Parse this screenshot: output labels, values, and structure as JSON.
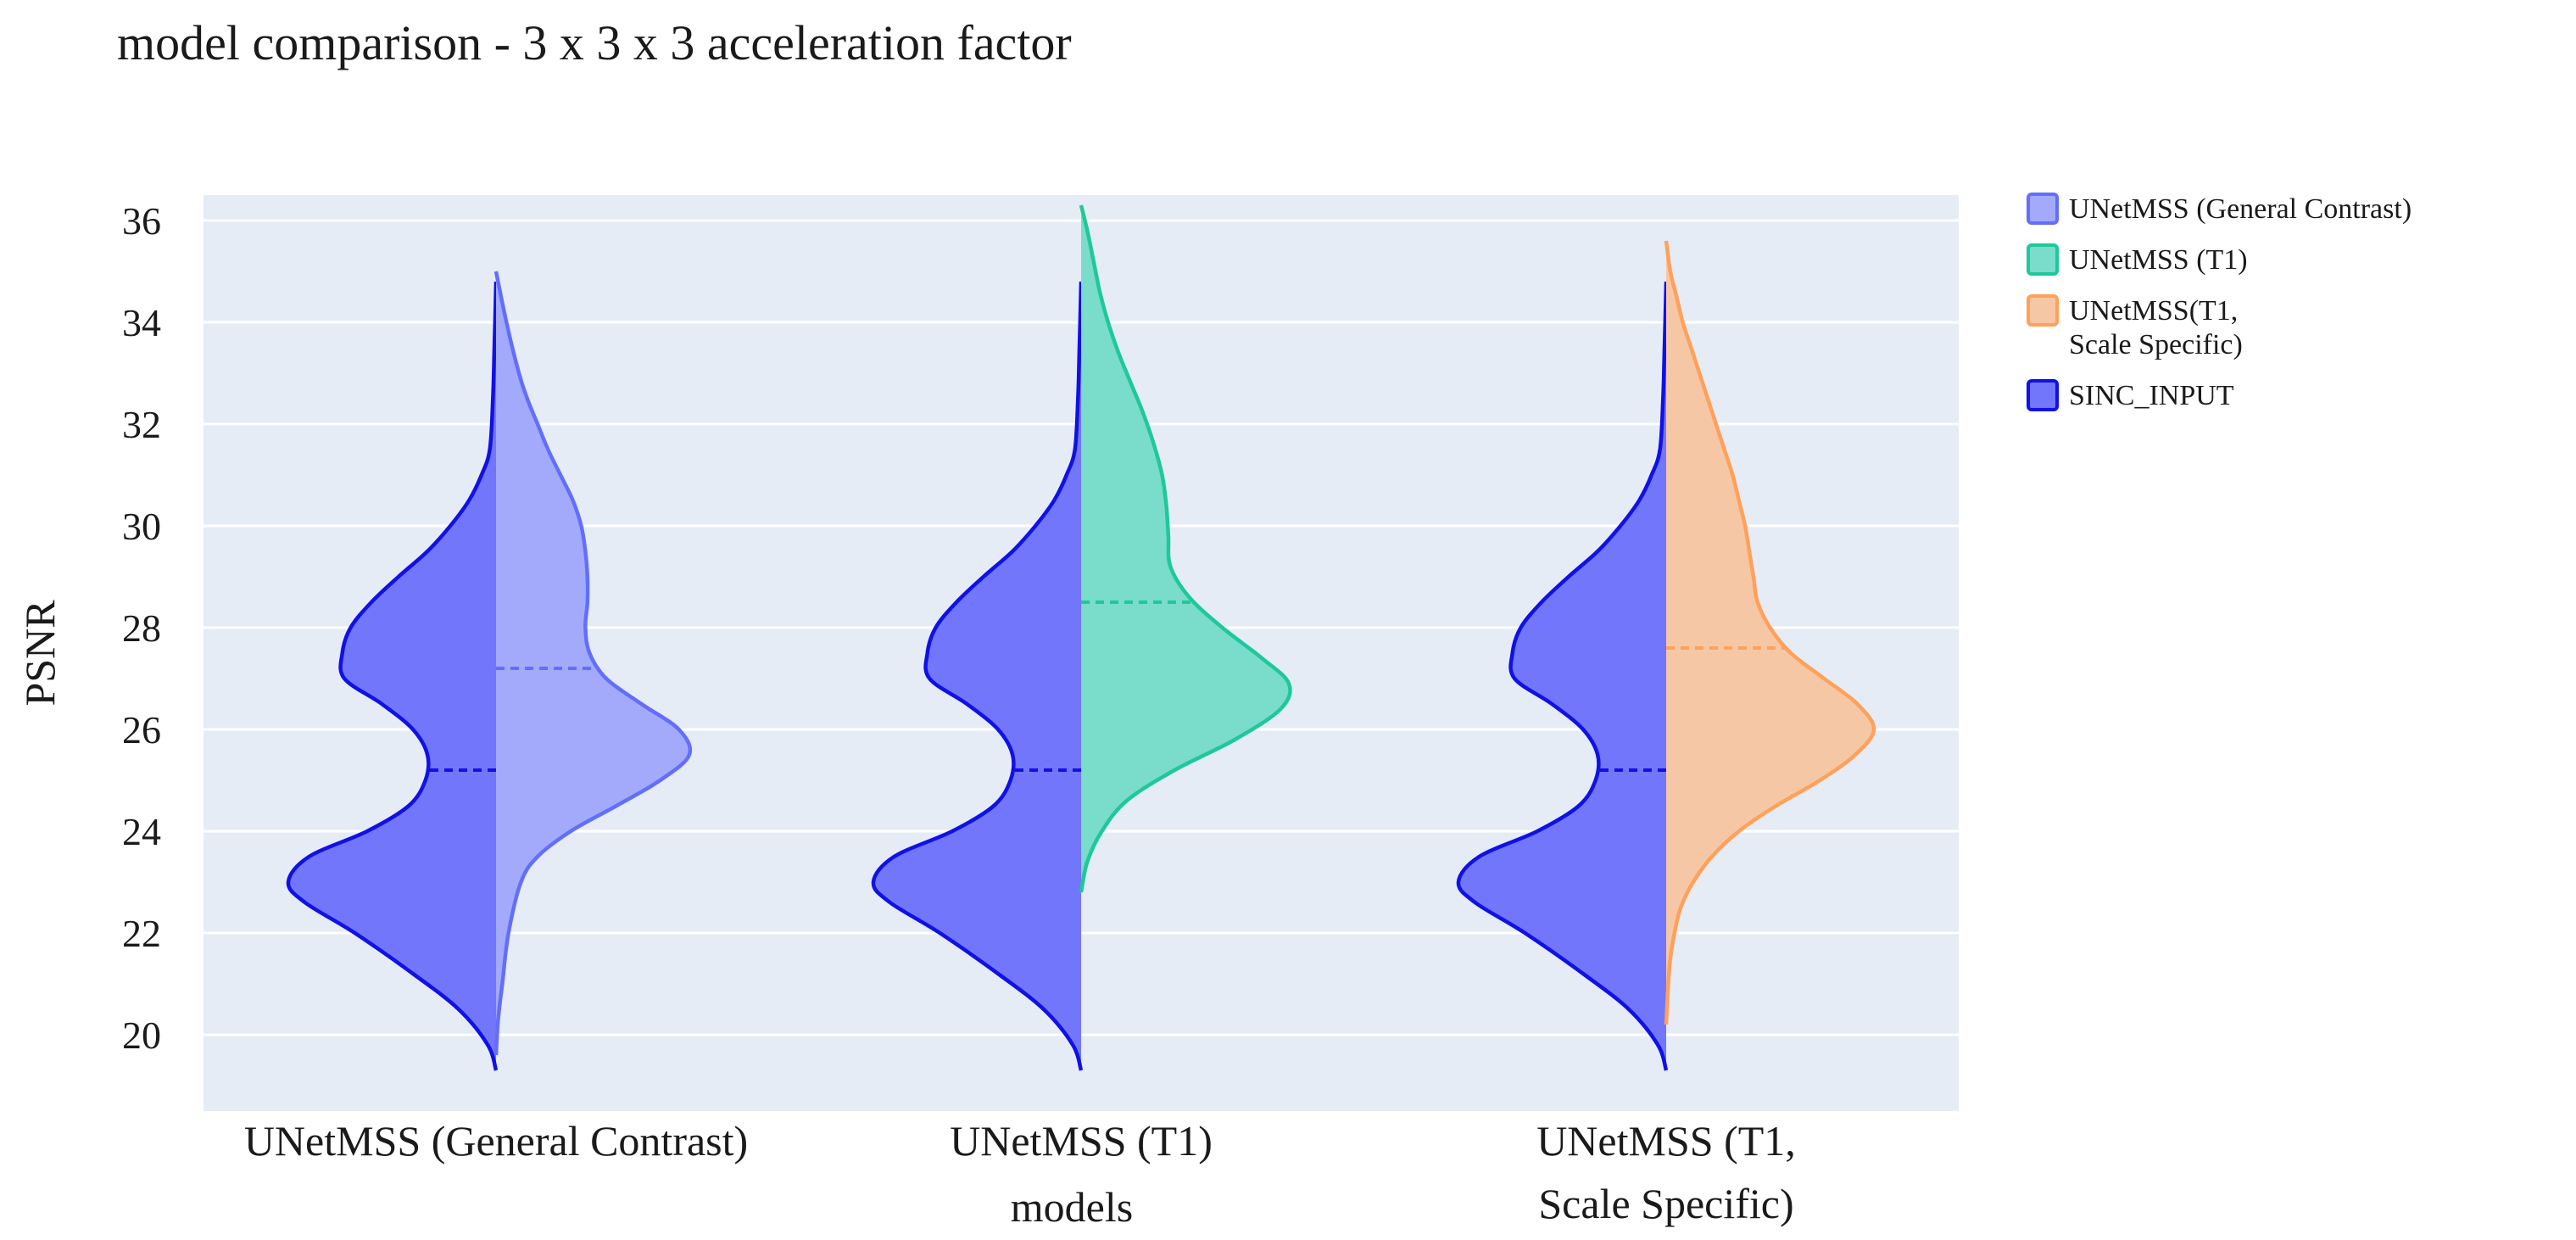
{
  "chart_data": {
    "type": "violin",
    "title": "model comparison - 3 x 3 x 3 acceleration factor",
    "xlabel": "models",
    "ylabel": "PSNR",
    "ylim": [
      18.5,
      36.5
    ],
    "yticks": [
      20,
      22,
      24,
      26,
      28,
      30,
      32,
      34,
      36
    ],
    "categories": [
      {
        "lines": [
          "UNetMSS (General Contrast)"
        ]
      },
      {
        "lines": [
          "UNetMSS (T1)"
        ]
      },
      {
        "lines": [
          "UNetMSS (T1,",
          "Scale Specific)"
        ]
      }
    ],
    "legend": [
      {
        "lines": [
          "UNetMSS (General Contrast)"
        ],
        "color": "#636efa",
        "fill": "#a3aafc"
      },
      {
        "lines": [
          "UNetMSS (T1)"
        ],
        "color": "#1fc89a",
        "fill": "#7adccb"
      },
      {
        "lines": [
          "UNetMSS(T1,",
          "Scale Specific)"
        ],
        "color": "#ffa15a",
        "fill": "#f6c7a5"
      },
      {
        "lines": [
          "SINC_INPUT"
        ],
        "color": "#1010e8",
        "fill": "#7276fa"
      }
    ],
    "baseline": {
      "name": "SINC_INPUT",
      "side": "left",
      "median": 25.2,
      "y_min": 19.3,
      "y_max": 34.8,
      "profile": [
        [
          19.3,
          0.0
        ],
        [
          19.8,
          0.04
        ],
        [
          20.5,
          0.18
        ],
        [
          21.2,
          0.4
        ],
        [
          22.0,
          0.68
        ],
        [
          22.6,
          0.92
        ],
        [
          23.0,
          1.0
        ],
        [
          23.5,
          0.9
        ],
        [
          24.0,
          0.62
        ],
        [
          24.5,
          0.42
        ],
        [
          25.0,
          0.34
        ],
        [
          25.5,
          0.33
        ],
        [
          26.0,
          0.4
        ],
        [
          26.5,
          0.55
        ],
        [
          27.0,
          0.73
        ],
        [
          27.5,
          0.74
        ],
        [
          28.0,
          0.7
        ],
        [
          28.5,
          0.6
        ],
        [
          29.0,
          0.47
        ],
        [
          29.5,
          0.33
        ],
        [
          30.0,
          0.22
        ],
        [
          30.5,
          0.13
        ],
        [
          31.0,
          0.07
        ],
        [
          31.5,
          0.03
        ],
        [
          32.5,
          0.015
        ],
        [
          33.5,
          0.008
        ],
        [
          34.8,
          0.0
        ]
      ]
    },
    "series": [
      {
        "name": "UNetMSS (General Contrast)",
        "side": "right",
        "median": 27.2,
        "y_min": 19.6,
        "y_max": 35.0,
        "profile": [
          [
            19.6,
            0.0
          ],
          [
            20.3,
            0.01
          ],
          [
            21.0,
            0.03
          ],
          [
            22.0,
            0.06
          ],
          [
            23.0,
            0.12
          ],
          [
            23.5,
            0.2
          ],
          [
            24.0,
            0.36
          ],
          [
            24.5,
            0.58
          ],
          [
            25.0,
            0.79
          ],
          [
            25.5,
            0.93
          ],
          [
            26.0,
            0.88
          ],
          [
            26.5,
            0.7
          ],
          [
            27.0,
            0.53
          ],
          [
            27.5,
            0.45
          ],
          [
            28.0,
            0.43
          ],
          [
            28.5,
            0.44
          ],
          [
            29.0,
            0.44
          ],
          [
            29.5,
            0.43
          ],
          [
            30.0,
            0.41
          ],
          [
            30.5,
            0.37
          ],
          [
            31.0,
            0.31
          ],
          [
            31.5,
            0.25
          ],
          [
            32.0,
            0.2
          ],
          [
            32.5,
            0.15
          ],
          [
            33.0,
            0.11
          ],
          [
            34.0,
            0.05
          ],
          [
            35.0,
            0.0
          ]
        ]
      },
      {
        "name": "UNetMSS (T1)",
        "side": "right",
        "median": 28.5,
        "y_min": 22.8,
        "y_max": 36.3,
        "profile": [
          [
            22.8,
            0.0
          ],
          [
            23.4,
            0.03
          ],
          [
            24.0,
            0.1
          ],
          [
            24.6,
            0.22
          ],
          [
            25.2,
            0.45
          ],
          [
            25.8,
            0.74
          ],
          [
            26.4,
            0.96
          ],
          [
            26.9,
            1.0
          ],
          [
            27.4,
            0.87
          ],
          [
            28.0,
            0.68
          ],
          [
            28.6,
            0.52
          ],
          [
            29.2,
            0.43
          ],
          [
            29.8,
            0.42
          ],
          [
            30.4,
            0.41
          ],
          [
            31.0,
            0.39
          ],
          [
            31.6,
            0.35
          ],
          [
            32.2,
            0.3
          ],
          [
            32.8,
            0.24
          ],
          [
            33.4,
            0.18
          ],
          [
            34.0,
            0.13
          ],
          [
            34.6,
            0.09
          ],
          [
            35.2,
            0.06
          ],
          [
            35.8,
            0.03
          ],
          [
            36.3,
            0.0
          ]
        ]
      },
      {
        "name": "UNetMSS(T1, Scale Specific)",
        "side": "right",
        "median": 27.6,
        "y_min": 20.2,
        "y_max": 35.6,
        "profile": [
          [
            20.2,
            0.0
          ],
          [
            21.0,
            0.01
          ],
          [
            21.5,
            0.02
          ],
          [
            22.0,
            0.04
          ],
          [
            22.5,
            0.07
          ],
          [
            23.0,
            0.13
          ],
          [
            23.5,
            0.22
          ],
          [
            24.0,
            0.35
          ],
          [
            24.5,
            0.53
          ],
          [
            25.0,
            0.74
          ],
          [
            25.5,
            0.91
          ],
          [
            26.0,
            1.0
          ],
          [
            26.5,
            0.92
          ],
          [
            27.0,
            0.76
          ],
          [
            27.5,
            0.6
          ],
          [
            28.0,
            0.5
          ],
          [
            28.5,
            0.44
          ],
          [
            29.0,
            0.42
          ],
          [
            29.5,
            0.4
          ],
          [
            30.0,
            0.38
          ],
          [
            30.5,
            0.35
          ],
          [
            31.0,
            0.32
          ],
          [
            31.5,
            0.28
          ],
          [
            32.0,
            0.24
          ],
          [
            32.5,
            0.2
          ],
          [
            33.0,
            0.16
          ],
          [
            33.5,
            0.12
          ],
          [
            34.0,
            0.08
          ],
          [
            34.5,
            0.05
          ],
          [
            35.0,
            0.02
          ],
          [
            35.6,
            0.0
          ]
        ]
      }
    ]
  }
}
